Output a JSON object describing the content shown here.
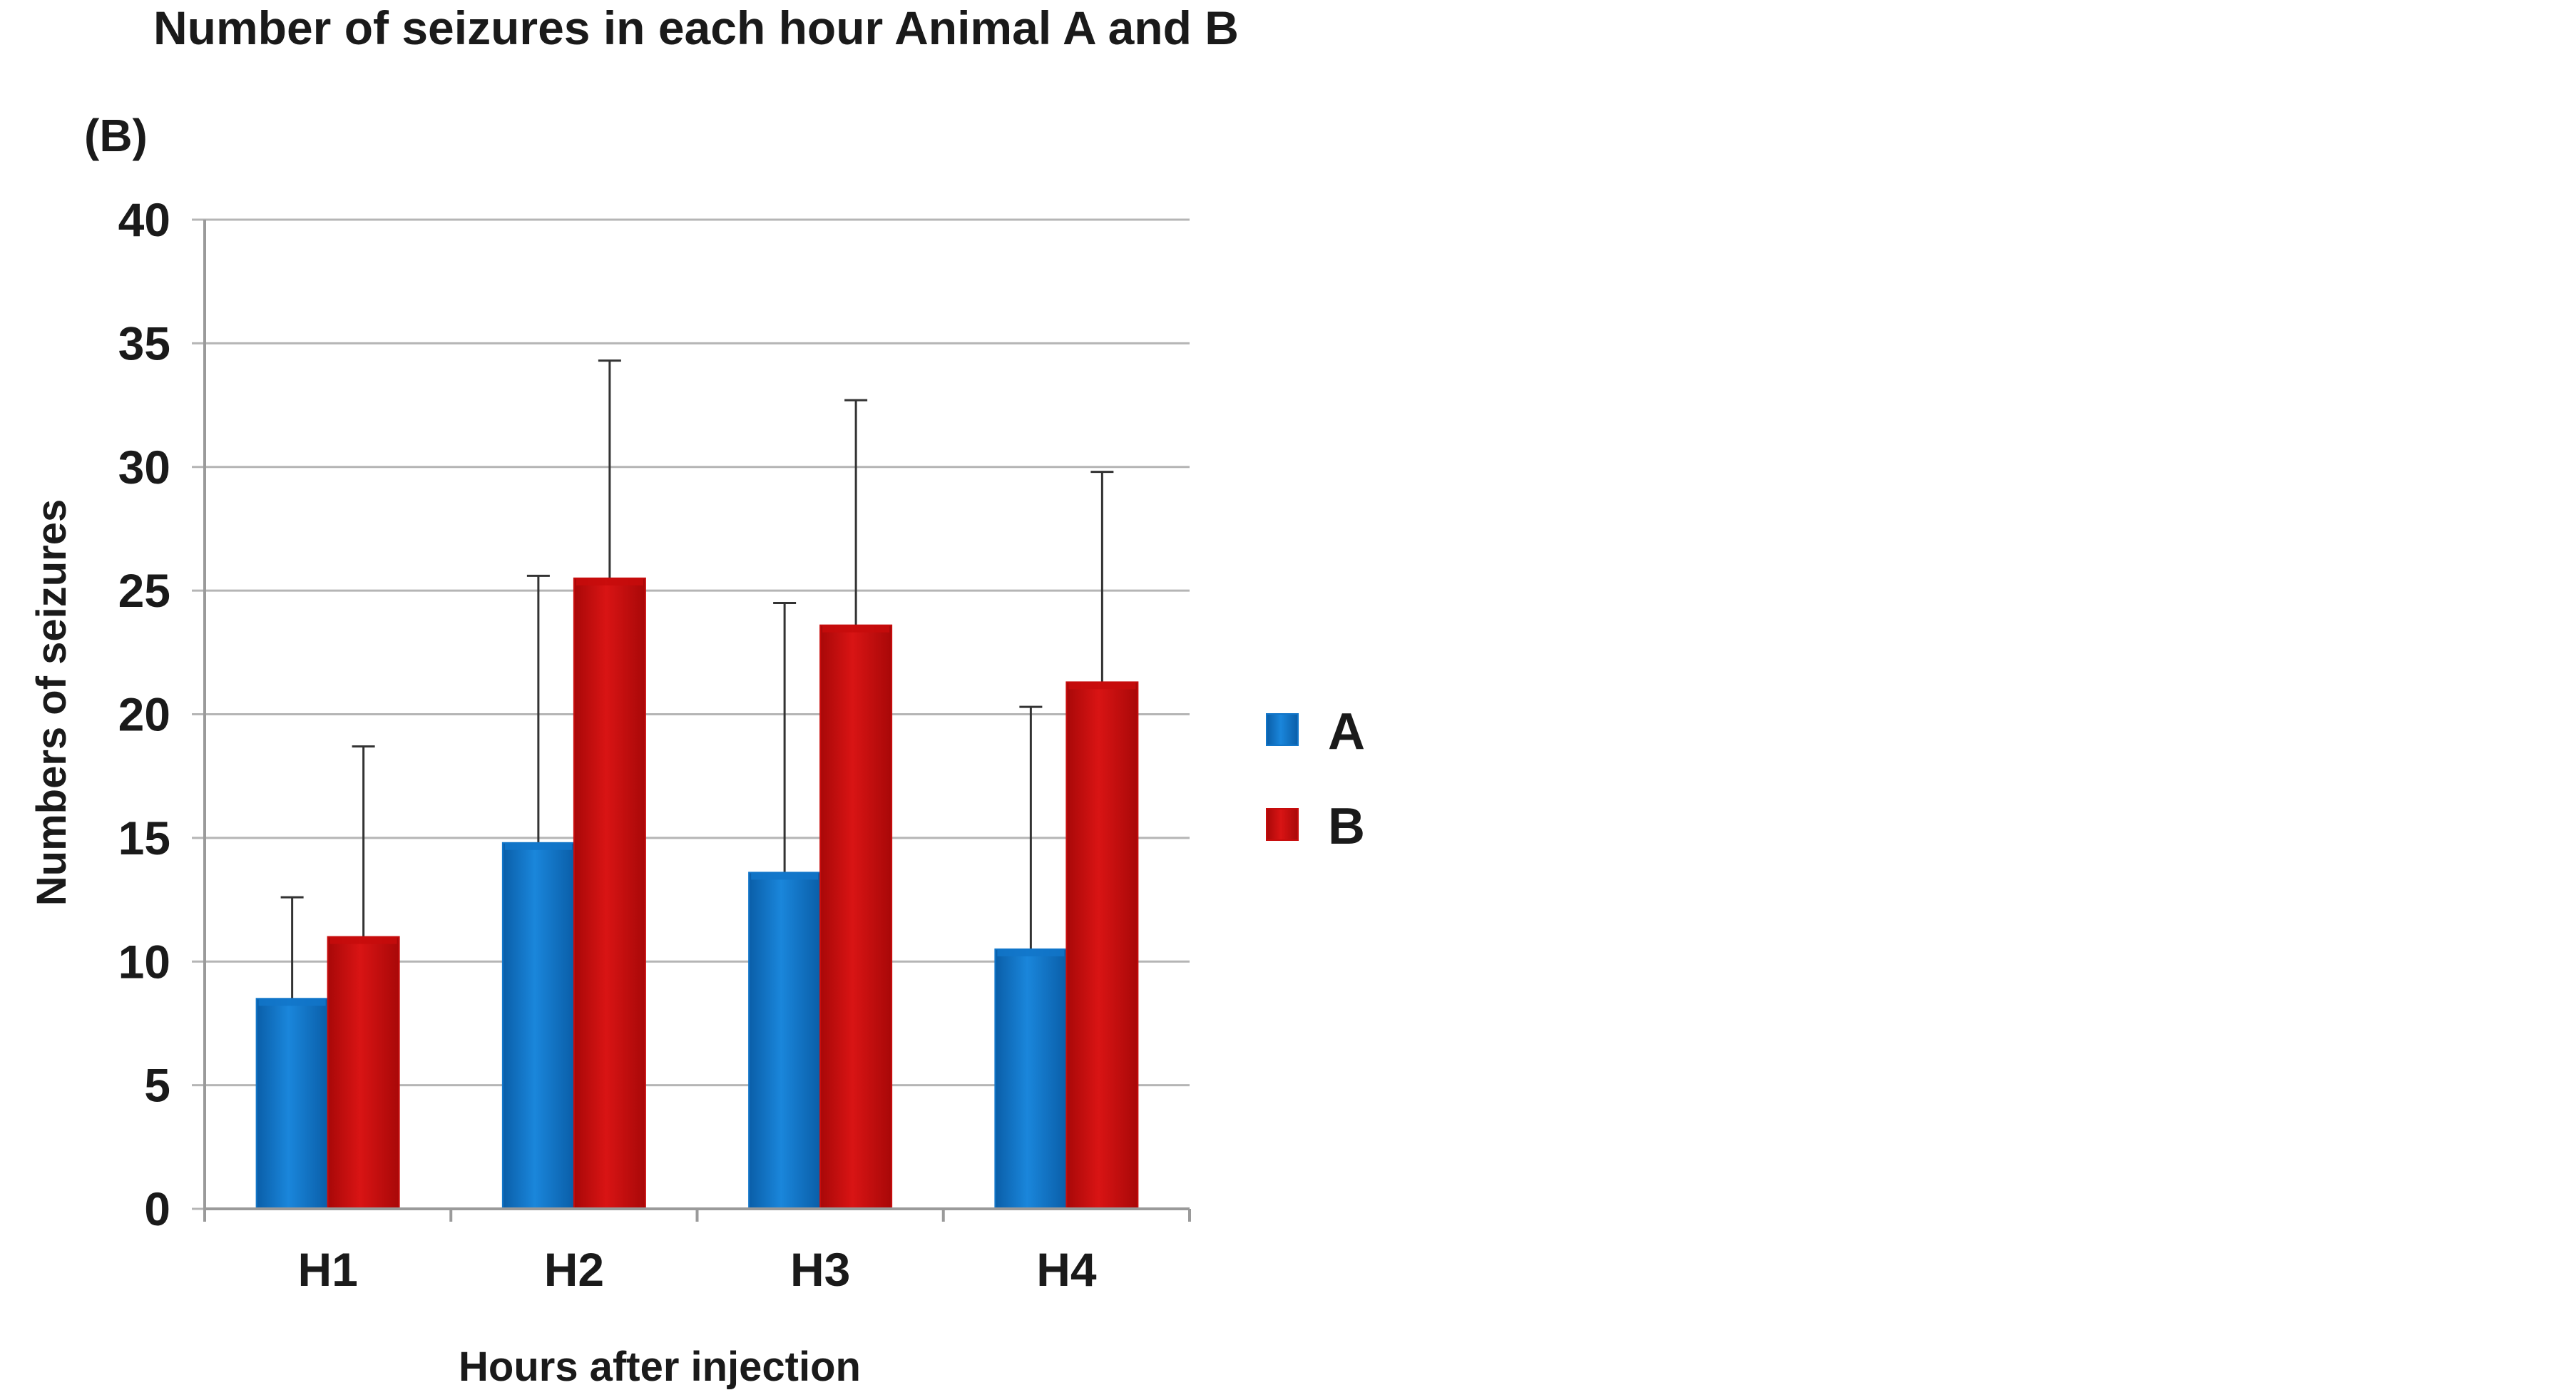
{
  "title": "Number of seizures in each hour Animal A and B",
  "panel_label": "(B)",
  "colors": {
    "A": "#1276c9",
    "B": "#c70c0c",
    "grid": "#b5b5b5",
    "text": "#1a1a1a"
  },
  "chart_data": {
    "type": "bar",
    "title": "Number of seizures in each hour Animal A and B",
    "xlabel": "Hours after injection",
    "ylabel": "Numbers of seizures",
    "categories": [
      "H1",
      "H2",
      "H3",
      "H4"
    ],
    "ylim": [
      0,
      40
    ],
    "yticks": [
      0,
      5,
      10,
      15,
      20,
      25,
      30,
      35,
      40
    ],
    "grid": true,
    "legend_position": "right",
    "series": [
      {
        "name": "A",
        "color": "#1276c9",
        "values": [
          8.5,
          14.8,
          13.6,
          10.5
        ],
        "error_upper": [
          12.6,
          25.6,
          24.5,
          20.3
        ]
      },
      {
        "name": "B",
        "color": "#c70c0c",
        "values": [
          11.0,
          25.5,
          23.6,
          21.3
        ],
        "error_upper": [
          18.7,
          34.3,
          32.7,
          29.8
        ]
      }
    ]
  }
}
